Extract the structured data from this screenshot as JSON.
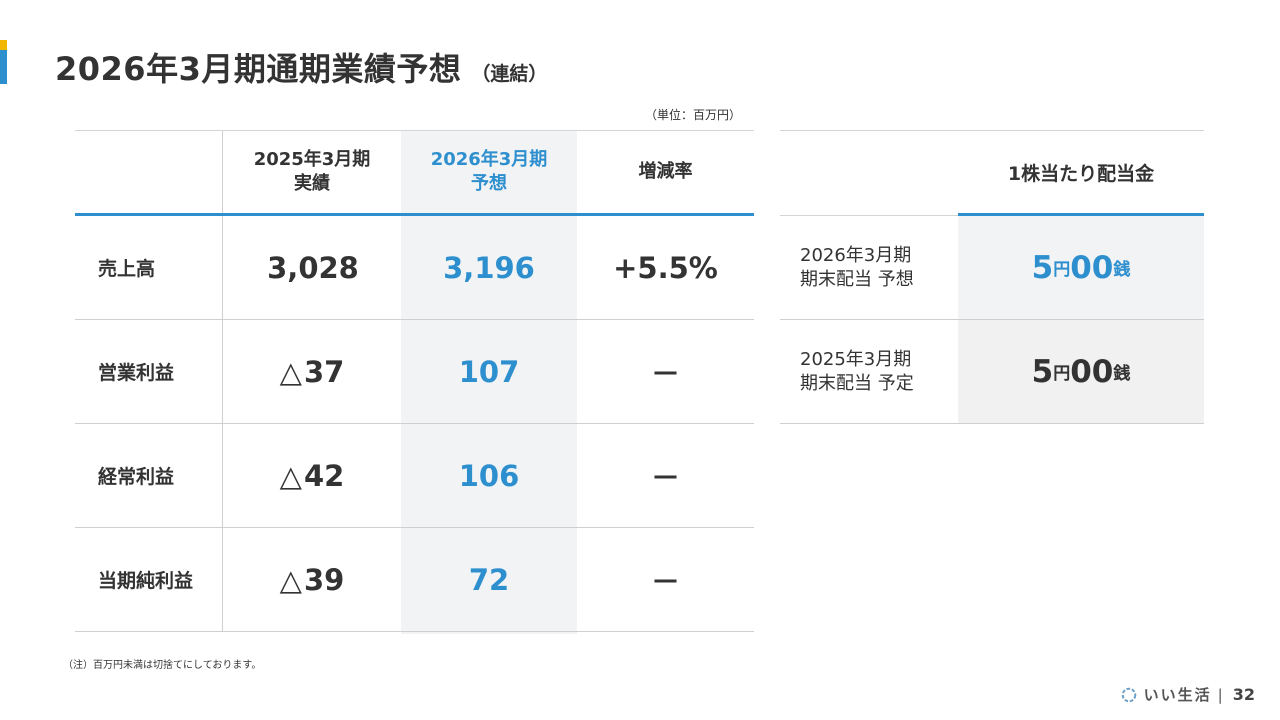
{
  "header": {
    "title": "2026年3月期通期業績予想",
    "subtitle": "（連結）",
    "unit_note": "（単位：百万円）"
  },
  "table": {
    "headers": {
      "col1": "",
      "col2_line1": "2025年3月期",
      "col2_line2": "実績",
      "col3_line1": "2026年3月期",
      "col3_line2": "予想",
      "col4": "増減率"
    },
    "rows": [
      {
        "label": "売上高",
        "prev_mark": "",
        "prev": "3,028",
        "forecast": "3,196",
        "change": "+5.5%"
      },
      {
        "label": "営業利益",
        "prev_mark": "△",
        "prev": "37",
        "forecast": "107",
        "change": "－"
      },
      {
        "label": "経常利益",
        "prev_mark": "△",
        "prev": "42",
        "forecast": "106",
        "change": "－"
      },
      {
        "label": "当期純利益",
        "prev_mark": "△",
        "prev": "39",
        "forecast": "72",
        "change": "－"
      }
    ]
  },
  "dividend": {
    "title": "1株当たり配当金",
    "rows": [
      {
        "label_line1": "2026年3月期",
        "label_line2": "期末配当 予想",
        "yen": "5",
        "yen_unit": "円",
        "sen": "00",
        "sen_unit": "銭"
      },
      {
        "label_line1": "2025年3月期",
        "label_line2": "期末配当 予定",
        "yen": "5",
        "yen_unit": "円",
        "sen": "00",
        "sen_unit": "銭"
      }
    ]
  },
  "note": "（注）百万円未満は切捨てにしております。",
  "footer": {
    "brand": "いい生活",
    "separator": "|",
    "page_number": "32"
  },
  "colors": {
    "accent_blue": "#2e8fcf",
    "accent_yellow": "#f2b705",
    "shade": "#f1f3f5",
    "text": "#333333"
  }
}
